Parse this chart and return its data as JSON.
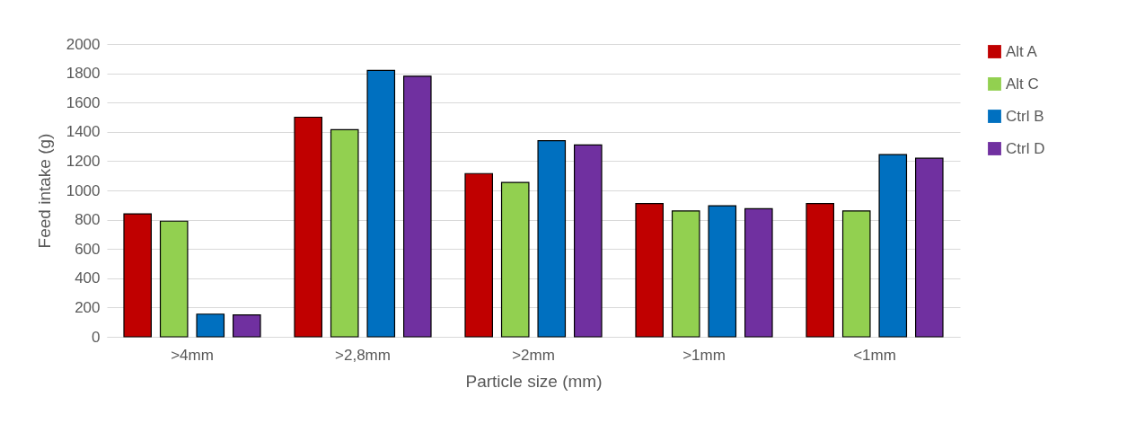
{
  "chart_data": {
    "type": "bar",
    "xlabel": "Particle size (mm)",
    "ylabel": "Feed intake (g)",
    "categories": [
      ">4mm",
      ">2,8mm",
      ">2mm",
      ">1mm",
      "<1mm"
    ],
    "series": [
      {
        "name": "Alt A",
        "color": "#c00000",
        "values": [
          840,
          1500,
          1115,
          910,
          910
        ]
      },
      {
        "name": "Alt C",
        "color": "#92d050",
        "values": [
          790,
          1415,
          1055,
          860,
          860
        ]
      },
      {
        "name": "Ctrl B",
        "color": "#0070c0",
        "values": [
          155,
          1820,
          1340,
          895,
          1245
        ]
      },
      {
        "name": "Ctrl D",
        "color": "#7030a0",
        "values": [
          150,
          1780,
          1310,
          875,
          1220
        ]
      }
    ],
    "ylim": [
      0,
      2000
    ],
    "yticks": [
      0,
      200,
      400,
      600,
      800,
      1000,
      1200,
      1400,
      1600,
      1800,
      2000
    ],
    "grid": "y",
    "legend": "right"
  }
}
